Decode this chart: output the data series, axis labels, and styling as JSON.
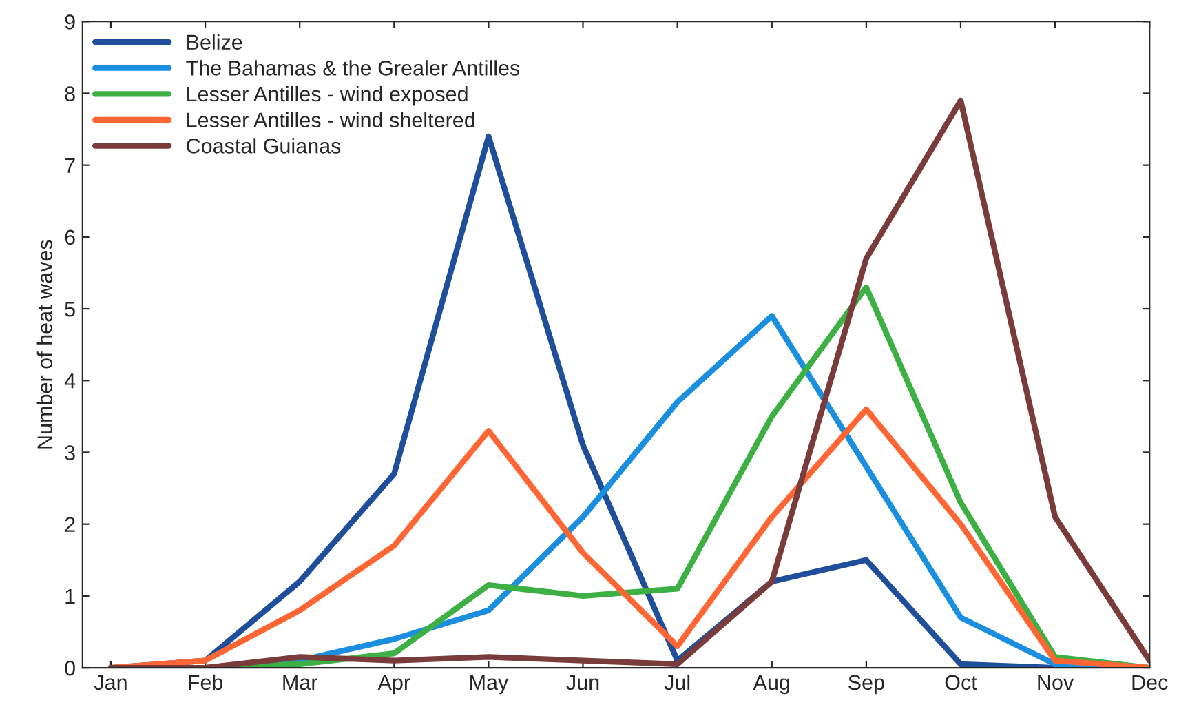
{
  "chart_data": {
    "type": "line",
    "ylabel": "Number of heat waves",
    "categories": [
      "Jan",
      "Feb",
      "Mar",
      "Apr",
      "May",
      "Jun",
      "Jul",
      "Aug",
      "Sep",
      "Oct",
      "Nov",
      "Dec"
    ],
    "series": [
      {
        "name": "Belize",
        "color": "#1f4e9a",
        "values": [
          0,
          0.1,
          1.2,
          2.7,
          7.4,
          3.1,
          0.1,
          1.2,
          1.5,
          0.05,
          0,
          0
        ]
      },
      {
        "name": "The Bahamas & the Grealer Antilles",
        "color": "#1a8fe0",
        "values": [
          0,
          0,
          0.1,
          0.4,
          0.8,
          2.1,
          3.7,
          4.9,
          2.8,
          0.7,
          0.05,
          0
        ]
      },
      {
        "name": "Lesser Antilles - wind exposed",
        "color": "#3cb043",
        "values": [
          0,
          0,
          0.05,
          0.2,
          1.15,
          1.0,
          1.1,
          3.5,
          5.3,
          2.3,
          0.15,
          0
        ]
      },
      {
        "name": "Lesser Antilles - wind sheltered",
        "color": "#ff6633",
        "values": [
          0,
          0.1,
          0.8,
          1.7,
          3.3,
          1.6,
          0.3,
          2.1,
          3.6,
          2.0,
          0.1,
          0
        ]
      },
      {
        "name": "Coastal Guianas",
        "color": "#7a3b3b",
        "values": [
          0,
          0,
          0.15,
          0.1,
          0.15,
          0.1,
          0.05,
          1.2,
          5.7,
          7.9,
          2.1,
          0.1
        ]
      }
    ],
    "ylim": [
      0,
      9
    ],
    "yticks": [
      0,
      1,
      2,
      3,
      4,
      5,
      6,
      7,
      8,
      9
    ],
    "grid": false,
    "legend": "top left",
    "marker": "none",
    "line_style": "solid"
  }
}
